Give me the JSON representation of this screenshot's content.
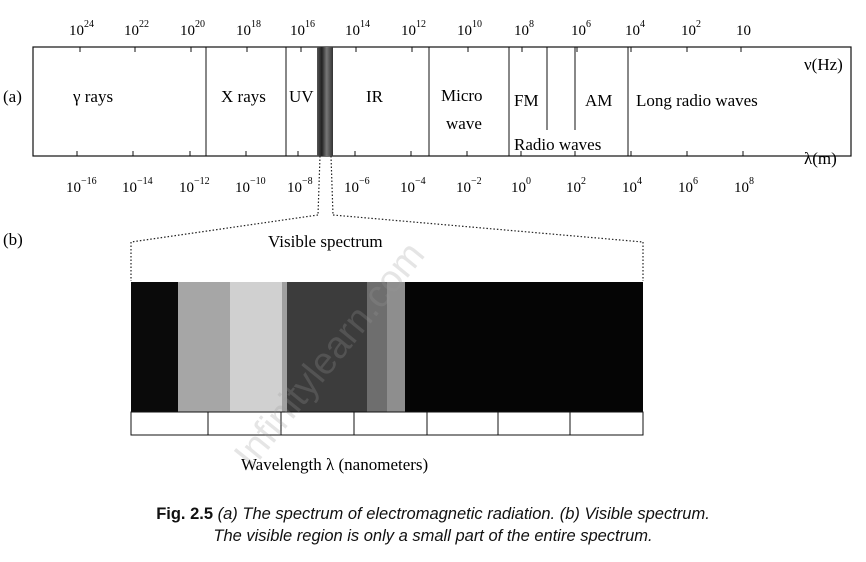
{
  "panel_labels": {
    "a": "(a)",
    "b": "(b)"
  },
  "frequency": {
    "axis_label": "ν(Hz)",
    "ticks": [
      {
        "base": "10",
        "exp": "24"
      },
      {
        "base": "10",
        "exp": "22"
      },
      {
        "base": "10",
        "exp": "20"
      },
      {
        "base": "10",
        "exp": "18"
      },
      {
        "base": "10",
        "exp": "16"
      },
      {
        "base": "10",
        "exp": "14"
      },
      {
        "base": "10",
        "exp": "12"
      },
      {
        "base": "10",
        "exp": "10"
      },
      {
        "base": "10",
        "exp": "8"
      },
      {
        "base": "10",
        "exp": "6"
      },
      {
        "base": "10",
        "exp": "4"
      },
      {
        "base": "10",
        "exp": "2"
      },
      {
        "base": "10",
        "exp": ""
      }
    ]
  },
  "wavelength": {
    "axis_label": "λ(m)",
    "ticks": [
      {
        "base": "10",
        "exp": "−16"
      },
      {
        "base": "10",
        "exp": "−14"
      },
      {
        "base": "10",
        "exp": "−12"
      },
      {
        "base": "10",
        "exp": "−10"
      },
      {
        "base": "10",
        "exp": "−8"
      },
      {
        "base": "10",
        "exp": "−6"
      },
      {
        "base": "10",
        "exp": "−4"
      },
      {
        "base": "10",
        "exp": "−2"
      },
      {
        "base": "10",
        "exp": "0"
      },
      {
        "base": "10",
        "exp": "2"
      },
      {
        "base": "10",
        "exp": "4"
      },
      {
        "base": "10",
        "exp": "6"
      },
      {
        "base": "10",
        "exp": "8"
      }
    ]
  },
  "regions": {
    "gamma": "γ rays",
    "xray": "X rays",
    "uv": "UV",
    "ir": "IR",
    "micro_1": "Micro",
    "micro_2": "wave",
    "fm": "FM",
    "am": "AM",
    "radio": "Radio waves",
    "long_radio": "Long radio waves"
  },
  "visible": {
    "title": "Visible spectrum",
    "axis_label": "Wavelength λ (nanometers)",
    "bands": [
      "#0a0a0a",
      "#a6a6a6",
      "#d0d0d0",
      "#a0a0a0",
      "#3c3c3c",
      "#6e6e6e",
      "#8e8e8e",
      "#050505"
    ]
  },
  "watermark": "Infinitylearn.com",
  "caption": {
    "fig_label": "Fig. 2.5",
    "line1": "(a) The spectrum of electromagnetic radiation. (b) Visible spectrum.",
    "line2": "The visible region is only a small part of the entire spectrum."
  }
}
